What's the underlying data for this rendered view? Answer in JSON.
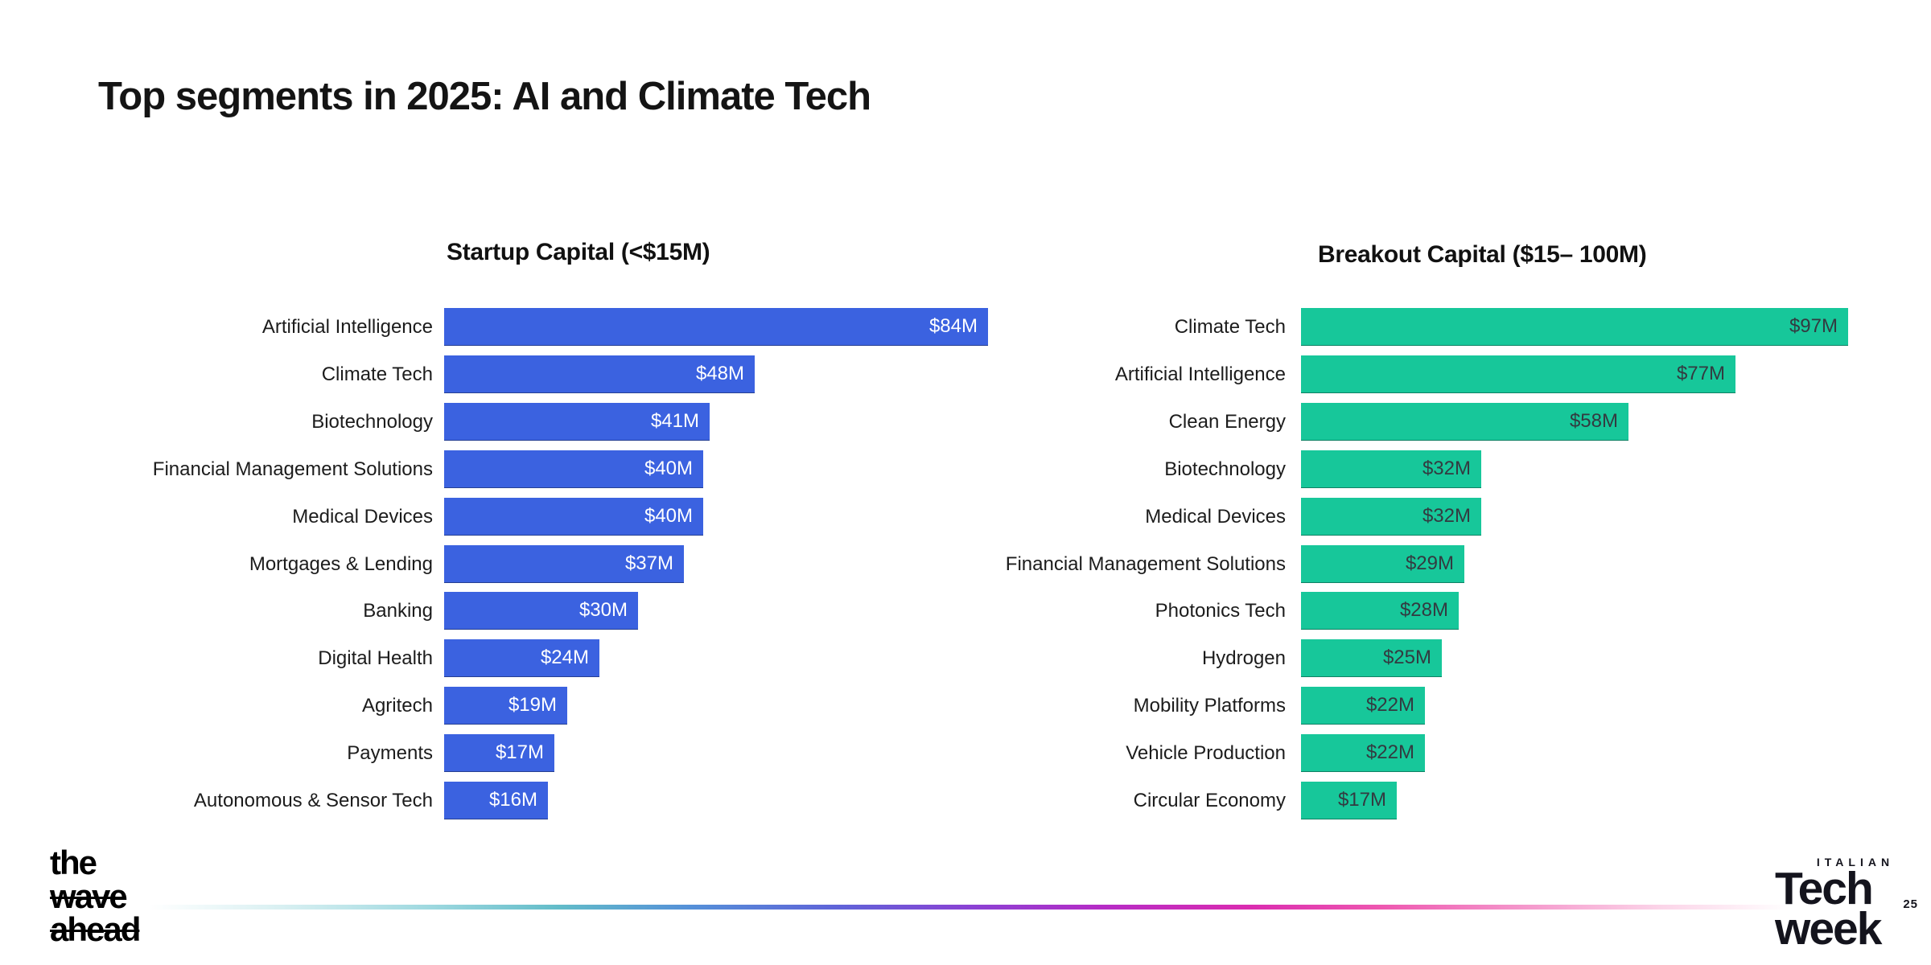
{
  "page": {
    "title": "Top segments in 2025: AI and Climate Tech"
  },
  "chart_data": [
    {
      "type": "bar",
      "orientation": "horizontal",
      "title": "Startup Capital (<$15M)",
      "categories": [
        "Artificial Intelligence",
        "Climate Tech",
        "Biotechnology",
        "Financial Management Solutions",
        "Medical Devices",
        "Mortgages & Lending",
        "Banking",
        "Digital Health",
        "Agritech",
        "Payments",
        "Autonomous & Sensor Tech"
      ],
      "values": [
        84,
        48,
        41,
        40,
        40,
        37,
        30,
        24,
        19,
        17,
        16
      ],
      "value_labels": [
        "$84M",
        "$48M",
        "$41M",
        "$40M",
        "$40M",
        "$37M",
        "$30M",
        "$24M",
        "$19M",
        "$17M",
        "$16M"
      ],
      "xlim": [
        0,
        84
      ],
      "unit": "USD millions",
      "bar_color": "#3b62e0",
      "value_label_color": "#ffffff",
      "grid": false,
      "legend": false
    },
    {
      "type": "bar",
      "orientation": "horizontal",
      "title": "Breakout Capital ($15– 100M)",
      "categories": [
        "Climate Tech",
        "Artificial Intelligence",
        "Clean Energy",
        "Biotechnology",
        "Medical Devices",
        "Financial Management Solutions",
        "Photonics Tech",
        "Hydrogen",
        "Mobility Platforms",
        "Vehicle Production",
        "Circular Economy"
      ],
      "values": [
        97,
        77,
        58,
        32,
        32,
        29,
        28,
        25,
        22,
        22,
        17
      ],
      "value_labels": [
        "$97M",
        "$77M",
        "$58M",
        "$32M",
        "$32M",
        "$29M",
        "$28M",
        "$25M",
        "$22M",
        "$22M",
        "$17M"
      ],
      "xlim": [
        0,
        97
      ],
      "unit": "USD millions",
      "bar_color": "#17c79a",
      "value_label_color": "#333a40",
      "grid": false,
      "legend": false
    }
  ],
  "footer": {
    "wave_logo": {
      "lines": [
        "the",
        "wave",
        "ahead"
      ]
    },
    "techweek_logo": {
      "kicker": "ITALIAN",
      "word1": "Tech",
      "word2": "week",
      "badge": "25"
    },
    "gradient_colors": [
      "rgba(255,255,255,0)",
      "#d9f0f2",
      "#9fd9e0",
      "#62bcc9",
      "#5590d8",
      "#5f63d8",
      "#8a42d4",
      "#b52cc6",
      "#da2cb0",
      "#ee57b0",
      "#f492c9",
      "#fbd4e8",
      "rgba(255,255,255,0)"
    ]
  }
}
